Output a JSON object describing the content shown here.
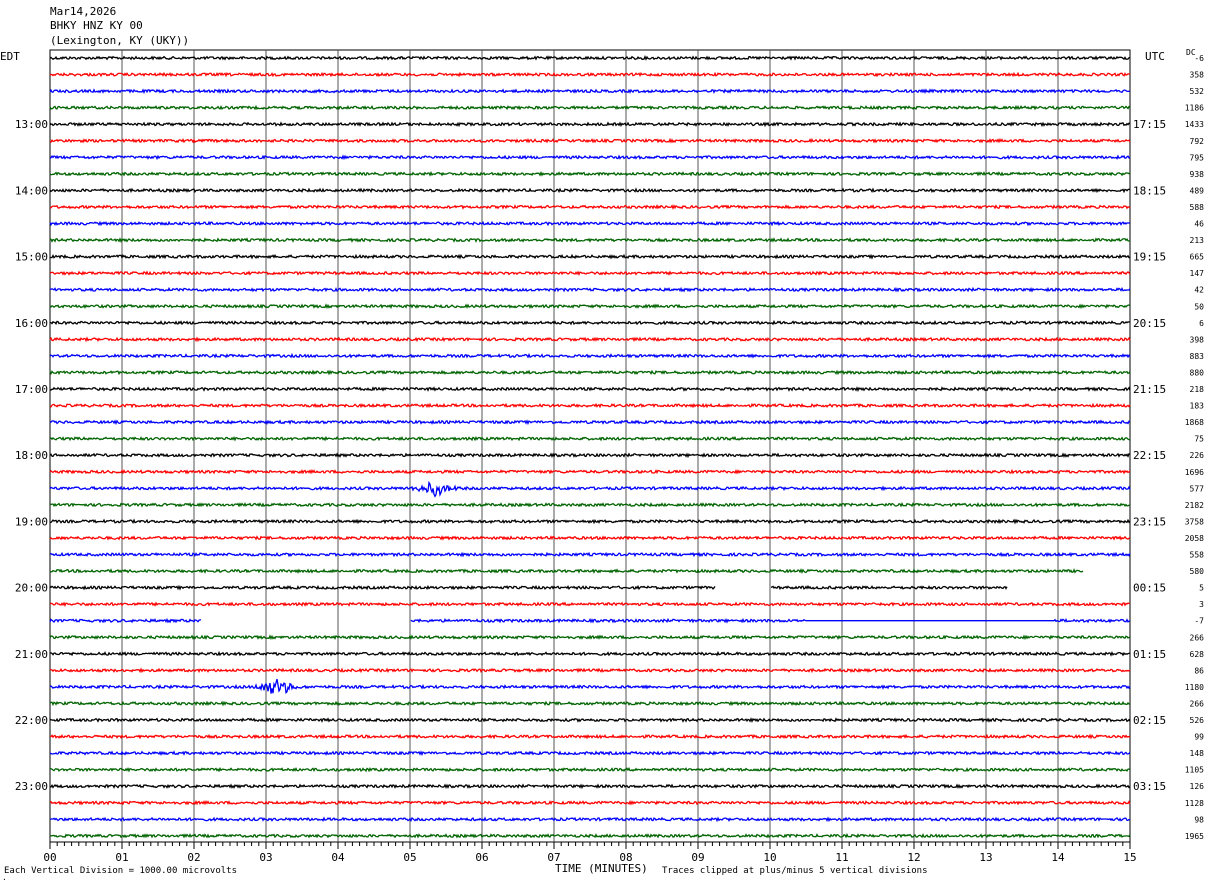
{
  "header": {
    "date": "Mar14,2026",
    "station": "BHKY HNZ KY 00",
    "location": "(Lexington, KY (UKY))"
  },
  "labels": {
    "left_timezone": "EDT",
    "right_timezone": "UTC",
    "dc_header": "DC"
  },
  "footer": {
    "scale_note": "Each Vertical Division = 1000.00 microvolts",
    "xlabel": "TIME (MINUTES)",
    "clip_note": "Traces clipped at plus/minus 5 vertical divisions",
    "corner_mark": "."
  },
  "colors": {
    "trace_cycle": [
      "#000000",
      "#ff0000",
      "#0000ff",
      "#006400"
    ],
    "grid": "#555555"
  },
  "chart_data": {
    "type": "line",
    "title": "BHKY HNZ KY 00",
    "xlabel": "TIME (MINUTES)",
    "ylabel": "",
    "xlim": [
      0,
      15
    ],
    "x_ticks": [
      "00",
      "01",
      "02",
      "03",
      "04",
      "05",
      "06",
      "07",
      "08",
      "09",
      "10",
      "11",
      "12",
      "13",
      "14",
      "15"
    ],
    "grid": true,
    "rows_per_hour": 4,
    "minutes_per_row": 15,
    "left_hour_labels": [
      "13:00",
      "14:00",
      "15:00",
      "16:00",
      "17:00",
      "18:00",
      "19:00",
      "20:00",
      "21:00",
      "22:00",
      "23:00"
    ],
    "right_hour_labels": [
      "17:15",
      "18:15",
      "19:15",
      "20:15",
      "21:15",
      "22:15",
      "23:15",
      "00:15",
      "01:15",
      "02:15",
      "03:15"
    ],
    "dc_offsets": [
      "-6",
      "358",
      "532",
      "1186",
      "1433",
      "792",
      "795",
      "938",
      "489",
      "588",
      "46",
      "213",
      "665",
      "147",
      "42",
      "50",
      "6",
      "398",
      "883",
      "880",
      "218",
      "183",
      "1868",
      "75",
      "226",
      "1696",
      "577",
      "2182",
      "3758",
      "2058",
      "558",
      "580",
      "5",
      "3",
      "-7",
      "266",
      "628",
      "86",
      "1180",
      "266",
      "526",
      "99",
      "148",
      "1105",
      "126",
      "1128",
      "98",
      "1965"
    ],
    "gaps": [
      {
        "row": 32,
        "from_min": 9.25,
        "to_min": 10.0
      },
      {
        "row": 32,
        "from_min": 13.3,
        "to_min": 15.0
      },
      {
        "row": 31,
        "from_min": 14.35,
        "to_min": 15.0
      },
      {
        "row": 34,
        "from_min": 2.1,
        "to_min": 5.0
      }
    ],
    "flat_segments": [
      {
        "row": 34,
        "from_min": 10.5,
        "to_min": 13.95
      }
    ],
    "events": [
      {
        "row": 26,
        "at_min": 5.35,
        "amplitude": 2.5
      },
      {
        "row": 38,
        "at_min": 3.15,
        "amplitude": 3.0
      }
    ]
  }
}
